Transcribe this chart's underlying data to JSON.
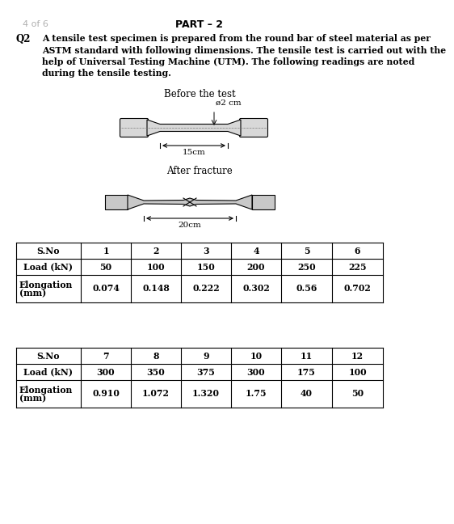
{
  "page_label": "4 of 6",
  "part_title": "PART – 2",
  "q_label": "Q2",
  "question_text": "A tensile test specimen is prepared from the round bar of steel material as per ASTM standard with following dimensions. The tensile test is carried out with the help of Universal Testing Machine (UTM). The following readings are noted during the tensile testing.",
  "before_label": "Before the test",
  "diameter_label": "ø2 cm",
  "length_before_label": "15cm",
  "after_label": "After fracture",
  "length_after_label": "20cm",
  "table1_headers": [
    "S.No",
    "1",
    "2",
    "3",
    "4",
    "5",
    "6"
  ],
  "table1_row1": [
    "Load (kN)",
    "50",
    "100",
    "150",
    "200",
    "250",
    "225"
  ],
  "table1_row2": [
    "0.074",
    "0.148",
    "0.222",
    "0.302",
    "0.56",
    "0.702"
  ],
  "table2_headers": [
    "S.No",
    "7",
    "8",
    "9",
    "10",
    "11",
    "12"
  ],
  "table2_row1": [
    "Load (kN)",
    "300",
    "350",
    "375",
    "300",
    "175",
    "100"
  ],
  "table2_row2": [
    "0.910",
    "1.072",
    "1.320",
    "1.75",
    "40",
    "50"
  ],
  "bg_color": "#ffffff",
  "text_color": "#000000",
  "gray_label_color": "#b0b0b0"
}
